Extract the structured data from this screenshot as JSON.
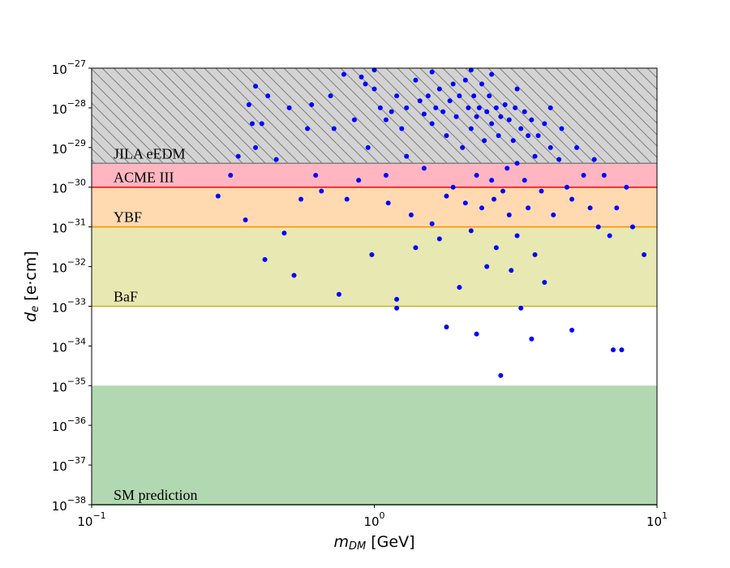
{
  "chart_data": {
    "type": "scatter",
    "xlabel": {
      "symbol": "m",
      "subscript": "DM",
      "unit": " [GeV]"
    },
    "ylabel": {
      "symbol": "d",
      "subscript": "e",
      "unit": " [e·cm]"
    },
    "xscale": "log",
    "yscale": "log",
    "xlim": [
      0.1,
      10
    ],
    "ylim": [
      1e-38,
      1e-27
    ],
    "xticks": [
      {
        "value": 0.1,
        "label": "10^−1"
      },
      {
        "value": 1,
        "label": "10^0"
      },
      {
        "value": 10,
        "label": "10^1"
      }
    ],
    "yticks": [
      {
        "value": 1e-38,
        "label": "10^−38"
      },
      {
        "value": 1e-37,
        "label": "10^−37"
      },
      {
        "value": 1e-36,
        "label": "10^−36"
      },
      {
        "value": 1e-35,
        "label": "10^−35"
      },
      {
        "value": 1e-34,
        "label": "10^−34"
      },
      {
        "value": 1e-33,
        "label": "10^−33"
      },
      {
        "value": 1e-32,
        "label": "10^−32"
      },
      {
        "value": 1e-31,
        "label": "10^−31"
      },
      {
        "value": 1e-30,
        "label": "10^−30"
      },
      {
        "value": 1e-29,
        "label": "10^−29"
      },
      {
        "value": 1e-28,
        "label": "10^−28"
      },
      {
        "value": 1e-27,
        "label": "10^−27"
      }
    ],
    "bands": [
      {
        "name": "JILA eEDM",
        "lower": 4e-30,
        "upper": 1e-27,
        "color": "#d3d3d3",
        "line_color": "#808080",
        "label_color": "#000000",
        "hatch": true
      },
      {
        "name": "ACME III",
        "lower": 1e-30,
        "upper": 4e-30,
        "color": "#ffb6c1",
        "line_color": "#ff0000",
        "label_color": "#ff0000",
        "hatch": false
      },
      {
        "name": "YBF",
        "lower": 1e-31,
        "upper": 1e-30,
        "color": "#ffdab0",
        "line_color": "#ff8c00",
        "label_color": "#ff8c00",
        "hatch": false
      },
      {
        "name": "BaF",
        "lower": 1e-33,
        "upper": 1e-31,
        "color": "#e8e8b2",
        "line_color": "#bcbd22",
        "label_color": "#bcbd22",
        "hatch": false
      },
      {
        "name": "SM prediction",
        "lower": 1e-38,
        "upper": 1e-35,
        "color": "#b2d8b2",
        "line_color": "#008000",
        "label_color": "#008000",
        "hatch": false
      }
    ],
    "series": [
      {
        "color": "#0000ff",
        "x": [
          0.28,
          0.31,
          0.33,
          0.35,
          0.36,
          0.37,
          0.38,
          0.38,
          0.4,
          0.41,
          0.42,
          0.45,
          0.48,
          0.5,
          0.52,
          0.55,
          0.58,
          0.6,
          0.62,
          0.65,
          0.7,
          0.72,
          0.75,
          0.78,
          0.8,
          0.85,
          0.88,
          0.9,
          0.93,
          0.95,
          0.98,
          1.0,
          1.05,
          1.1,
          1.1,
          1.12,
          1.15,
          1.2,
          1.2,
          1.25,
          1.3,
          1.3,
          1.35,
          1.4,
          1.4,
          1.45,
          1.5,
          1.5,
          1.55,
          1.6,
          1.6,
          1.65,
          1.7,
          1.7,
          1.75,
          1.8,
          1.8,
          1.85,
          1.9,
          1.9,
          1.95,
          2.0,
          2.0,
          2.05,
          2.1,
          2.1,
          2.15,
          2.2,
          2.2,
          2.25,
          2.3,
          2.3,
          2.35,
          2.4,
          2.4,
          2.45,
          2.5,
          2.5,
          2.55,
          2.6,
          2.6,
          2.65,
          2.7,
          2.7,
          2.75,
          2.8,
          2.8,
          2.85,
          2.9,
          2.95,
          3.0,
          3.0,
          3.05,
          3.1,
          3.15,
          3.2,
          3.2,
          3.3,
          3.3,
          3.4,
          3.4,
          3.5,
          3.5,
          3.6,
          3.6,
          3.7,
          3.7,
          3.8,
          3.9,
          4.0,
          4.0,
          4.2,
          4.3,
          4.5,
          4.6,
          4.8,
          5.0,
          5.0,
          5.2,
          5.5,
          5.8,
          6.0,
          6.2,
          6.5,
          6.8,
          7.0,
          7.2,
          7.5,
          7.8,
          8.2,
          9.0,
          1.0,
          1.6,
          2.2,
          2.6,
          3.2,
          4.2,
          1.2,
          1.8,
          2.3
        ],
        "y": [
          6e-31,
          2e-30,
          6e-30,
          1.5e-31,
          1.2e-28,
          4e-29,
          3.5e-28,
          1e-29,
          4e-29,
          1.5e-32,
          2e-28,
          5e-30,
          7e-32,
          1e-28,
          6e-33,
          5e-31,
          3e-29,
          1.2e-28,
          2e-30,
          8e-31,
          2e-28,
          3e-29,
          2e-33,
          7e-28,
          5e-31,
          5e-29,
          1.5e-30,
          6e-28,
          4e-28,
          1e-29,
          2e-32,
          3e-28,
          1e-28,
          5e-29,
          2e-30,
          4e-31,
          8e-29,
          2e-28,
          9e-34,
          3e-29,
          1e-28,
          6e-30,
          2e-31,
          5e-28,
          3e-32,
          1.5e-28,
          7e-29,
          3e-30,
          2e-28,
          4e-29,
          1.2e-31,
          1e-28,
          3e-28,
          5e-32,
          8e-29,
          2e-29,
          6e-31,
          1.5e-28,
          4e-28,
          1e-30,
          6e-29,
          2e-28,
          3e-33,
          1e-29,
          5e-28,
          4e-31,
          1e-28,
          3e-29,
          8e-32,
          2e-28,
          6e-29,
          2e-30,
          1e-28,
          4e-28,
          3e-31,
          1.5e-29,
          8e-29,
          1e-32,
          2e-28,
          4e-29,
          1.5e-30,
          5e-31,
          1e-28,
          3e-32,
          2e-29,
          1.8e-35,
          6e-29,
          8e-31,
          1.2e-28,
          3e-30,
          5e-29,
          2e-31,
          8e-33,
          1.5e-29,
          1e-28,
          4e-30,
          6e-32,
          3e-29,
          9e-34,
          8e-29,
          1.5e-30,
          2e-29,
          3e-31,
          5e-29,
          1.5e-34,
          6e-30,
          2e-32,
          2e-29,
          8e-31,
          4e-29,
          4e-33,
          1e-29,
          2e-31,
          5e-30,
          3e-29,
          1e-30,
          2.5e-34,
          5e-31,
          1e-29,
          2e-30,
          3e-31,
          5e-30,
          1e-31,
          2e-30,
          6e-32,
          8e-35,
          3e-31,
          8e-35,
          1e-30,
          1e-31,
          2e-32,
          9e-28,
          8e-28,
          9e-28,
          7e-28,
          3e-28,
          1e-28,
          1.5e-33,
          3e-34,
          2e-34
        ]
      }
    ]
  }
}
